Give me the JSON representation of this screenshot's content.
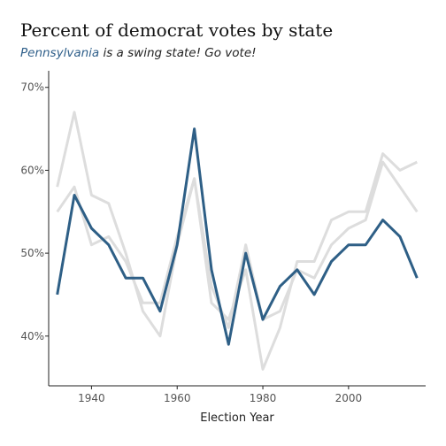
{
  "title": "Percent of democrat votes by state",
  "subtitle": {
    "highlight": "Pennsylvania",
    "rest": "is a swing state! Go vote!"
  },
  "chart_data": {
    "type": "line",
    "xlabel": "Election Year",
    "ylabel": "",
    "xlim": [
      1930,
      2018
    ],
    "ylim": [
      34,
      72
    ],
    "x_ticks": [
      1940,
      1960,
      1980,
      2000
    ],
    "y_ticks": [
      40,
      50,
      60,
      70
    ],
    "y_tick_labels": [
      "40%",
      "50%",
      "60%",
      "70%"
    ],
    "x": [
      1932,
      1936,
      1940,
      1944,
      1948,
      1952,
      1956,
      1960,
      1964,
      1968,
      1972,
      1976,
      1980,
      1984,
      1988,
      1992,
      1996,
      2000,
      2004,
      2008,
      2012,
      2016
    ],
    "series": [
      {
        "name": "Pennsylvania",
        "highlight": true,
        "color": "#2e5f86",
        "values": [
          45,
          57,
          53,
          51,
          47,
          47,
          43,
          51,
          65,
          48,
          39,
          50,
          42,
          46,
          48,
          45,
          49,
          51,
          51,
          54,
          52,
          47
        ]
      },
      {
        "highlight": false,
        "color": "#dddddd",
        "values": [
          58,
          67,
          57,
          56,
          50,
          43,
          40,
          51,
          59,
          44,
          42,
          48,
          36,
          41,
          49,
          49,
          54,
          55,
          55,
          62,
          60,
          61
        ]
      },
      {
        "highlight": false,
        "color": "#dddddd",
        "values": [
          55,
          58,
          51,
          52,
          49,
          44,
          44,
          52,
          59,
          46,
          41,
          51,
          42,
          43,
          48,
          47,
          51,
          53,
          54,
          61,
          58,
          55
        ]
      }
    ],
    "grid": false,
    "legend": "none"
  }
}
